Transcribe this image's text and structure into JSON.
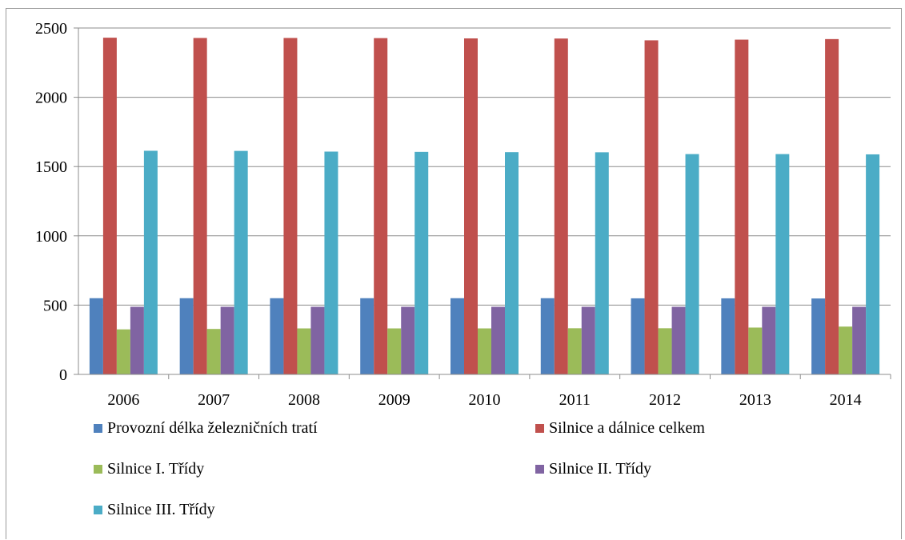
{
  "chart_data": {
    "type": "bar",
    "title": "",
    "xlabel": "",
    "ylabel": "",
    "ylim": [
      0,
      2500
    ],
    "yticks": [
      0,
      500,
      1000,
      1500,
      2000,
      2500
    ],
    "grid": "horizontal",
    "legend_position": "bottom",
    "categories": [
      "2006",
      "2007",
      "2008",
      "2009",
      "2010",
      "2011",
      "2012",
      "2013",
      "2014"
    ],
    "series": [
      {
        "name": "Provozní délka železničních tratí",
        "color": "#4f81bd",
        "values": [
          550,
          550,
          550,
          550,
          550,
          550,
          549,
          549,
          548
        ]
      },
      {
        "name": "Silnice a dálnice celkem",
        "color": "#c0504d",
        "values": [
          2430,
          2428,
          2428,
          2427,
          2425,
          2424,
          2411,
          2416,
          2420
        ]
      },
      {
        "name": "Silnice I. Třídy",
        "color": "#9bbb59",
        "values": [
          325,
          328,
          332,
          332,
          332,
          333,
          333,
          338,
          345
        ]
      },
      {
        "name": "Silnice II. Třídy",
        "color": "#8064a2",
        "values": [
          488,
          488,
          488,
          488,
          488,
          488,
          488,
          488,
          488
        ]
      },
      {
        "name": "Silnice III. Třídy",
        "color": "#4bacc6",
        "values": [
          1614,
          1613,
          1608,
          1606,
          1604,
          1603,
          1590,
          1590,
          1588
        ]
      }
    ]
  }
}
